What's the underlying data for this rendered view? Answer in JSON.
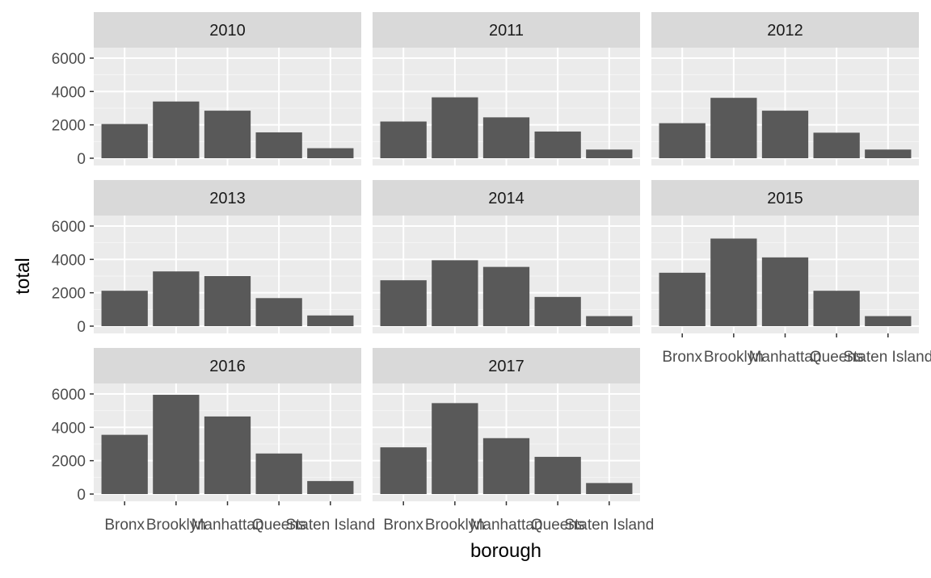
{
  "chart_data": {
    "type": "bar",
    "facet_by": "year",
    "facet_layout": {
      "ncol": 3,
      "nrow": 3
    },
    "xlabel": "borough",
    "ylabel": "total",
    "categories": [
      "Bronx",
      "Brooklyn",
      "Manhattan",
      "Queens",
      "Staten Island"
    ],
    "ylim": [
      0,
      6000
    ],
    "yticks": [
      0,
      2000,
      4000,
      6000
    ],
    "ytick_labels": [
      "0",
      "2000",
      "4000",
      "6000"
    ],
    "grid": true,
    "legend": "none",
    "colors": {
      "bar": "#595959",
      "panel": "#ebebeb",
      "strip": "#d9d9d9",
      "grid": "#ffffff"
    },
    "facets": [
      {
        "label": "2010",
        "values": [
          2050,
          3400,
          2850,
          1550,
          600
        ]
      },
      {
        "label": "2011",
        "values": [
          2200,
          3650,
          2450,
          1600,
          520
        ]
      },
      {
        "label": "2012",
        "values": [
          2100,
          3620,
          2850,
          1530,
          520
        ]
      },
      {
        "label": "2013",
        "values": [
          2120,
          3280,
          3000,
          1680,
          640
        ]
      },
      {
        "label": "2014",
        "values": [
          2750,
          3950,
          3550,
          1750,
          600
        ]
      },
      {
        "label": "2015",
        "values": [
          3200,
          5250,
          4120,
          2120,
          600
        ]
      },
      {
        "label": "2016",
        "values": [
          3550,
          5950,
          4650,
          2430,
          780
        ]
      },
      {
        "label": "2017",
        "values": [
          2800,
          5450,
          3350,
          2230,
          660
        ]
      }
    ]
  }
}
